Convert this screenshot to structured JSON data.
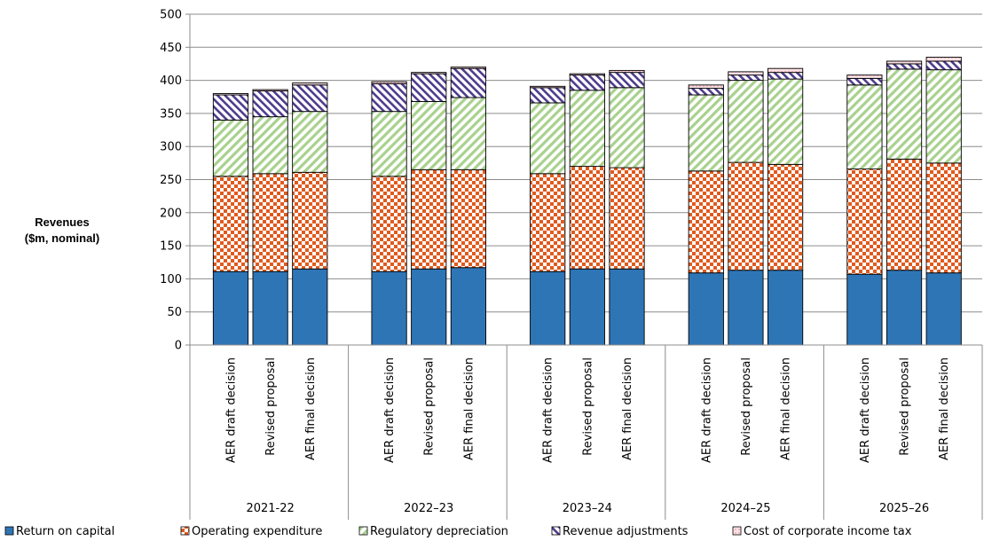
{
  "chart_data": {
    "type": "bar",
    "stacked": true,
    "ylabel_lines": [
      "Revenues",
      "($m, nominal)"
    ],
    "ylim": [
      0,
      500
    ],
    "yticks": [
      0,
      50,
      100,
      150,
      200,
      250,
      300,
      350,
      400,
      450,
      500
    ],
    "grid": true,
    "legend_position": "bottom",
    "groups": [
      "2021-22",
      "2022–23",
      "2023–24",
      "2024–25",
      "2025–26"
    ],
    "group_categories": [
      "AER draft decision",
      "Revised proposal",
      "AER final decision"
    ],
    "series": [
      {
        "name": "Return on capital",
        "color": "#2E75B6",
        "pattern": "solid",
        "values": [
          [
            111,
            111,
            115
          ],
          [
            111,
            115,
            117
          ],
          [
            111,
            115,
            115
          ],
          [
            109,
            113,
            113
          ],
          [
            107,
            113,
            109
          ]
        ]
      },
      {
        "name": "Operating expenditure",
        "color": "#E05A1E",
        "pattern": "checker",
        "values": [
          [
            144,
            148,
            146
          ],
          [
            144,
            150,
            148
          ],
          [
            148,
            155,
            153
          ],
          [
            154,
            163,
            160
          ],
          [
            159,
            168,
            166
          ]
        ]
      },
      {
        "name": "Regulatory depreciation",
        "color": "#A9D18E",
        "pattern": "diagonal",
        "values": [
          [
            85,
            86,
            92
          ],
          [
            98,
            103,
            109
          ],
          [
            107,
            115,
            121
          ],
          [
            115,
            124,
            129
          ],
          [
            127,
            136,
            141
          ]
        ]
      },
      {
        "name": "Revenue adjustments",
        "color": "#4E3B8C",
        "pattern": "diagonal-rev",
        "values": [
          [
            38,
            39,
            40
          ],
          [
            42,
            42,
            44
          ],
          [
            23,
            23,
            23
          ],
          [
            10,
            8,
            10
          ],
          [
            10,
            8,
            13
          ]
        ]
      },
      {
        "name": "Cost of corporate income tax",
        "color": "#F4B8C0",
        "pattern": "light",
        "values": [
          [
            2,
            2,
            3
          ],
          [
            3,
            2,
            2
          ],
          [
            2,
            2,
            3
          ],
          [
            5,
            5,
            6
          ],
          [
            5,
            4,
            6
          ]
        ]
      }
    ]
  }
}
